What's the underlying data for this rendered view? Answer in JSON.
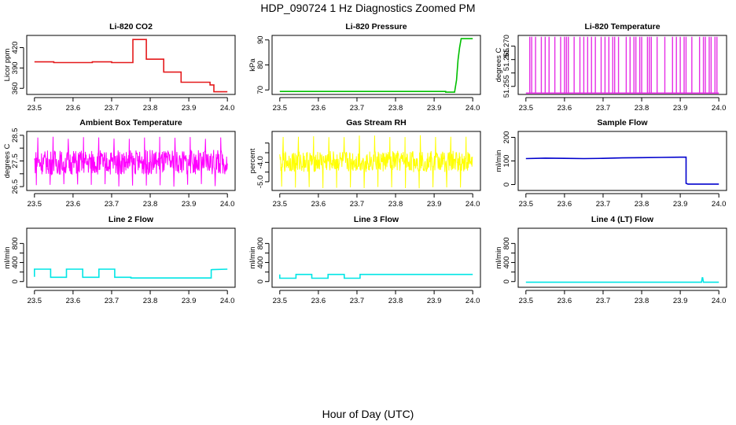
{
  "title": "HDP_090724  1 Hz Diagnostics Zoomed PM",
  "footer": "Hour of Day (UTC)",
  "chart_data": [
    {
      "type": "line",
      "title": "Li-820 CO2",
      "xlabel": "",
      "ylabel": "Licor ppm",
      "color": "#e41a1c",
      "xlim": [
        23.48,
        24.02
      ],
      "ylim": [
        351,
        438
      ],
      "x_ticks": [
        "23.5",
        "23.6",
        "23.7",
        "23.8",
        "23.9",
        "24.0"
      ],
      "y_ticks": [
        {
          "v": 360,
          "label": "360"
        },
        {
          "v": 390,
          "label": "390"
        },
        {
          "v": 420,
          "label": "420"
        }
      ],
      "series": [
        {
          "x": [
            23.5,
            23.55,
            23.55,
            23.6,
            23.6,
            23.65,
            23.65,
            23.7,
            23.7,
            23.75,
            23.755,
            23.755,
            23.79,
            23.79,
            23.835,
            23.835,
            23.88,
            23.88,
            23.955,
            23.955,
            23.965,
            23.965,
            24.0
          ],
          "y": [
            399,
            399,
            398,
            398,
            398,
            398,
            399,
            399,
            398,
            398,
            398,
            432,
            432,
            403,
            403,
            384,
            384,
            369,
            369,
            365,
            365,
            355,
            355
          ]
        }
      ]
    },
    {
      "type": "line",
      "title": "Li-820 Pressure",
      "xlabel": "",
      "ylabel": "kPa",
      "color": "#00bf00",
      "xlim": [
        23.48,
        24.02
      ],
      "ylim": [
        68.2,
        91.8
      ],
      "x_ticks": [
        "23.5",
        "23.6",
        "23.7",
        "23.8",
        "23.9",
        "24.0"
      ],
      "y_ticks": [
        {
          "v": 70,
          "label": "70"
        },
        {
          "v": 80,
          "label": "80"
        },
        {
          "v": 90,
          "label": "90"
        }
      ],
      "series": [
        {
          "x": [
            23.5,
            23.93,
            23.93,
            23.953,
            23.958,
            23.962,
            23.966,
            23.97,
            24.0
          ],
          "y": [
            69.4,
            69.4,
            69.1,
            69.1,
            74,
            82,
            87,
            90.5,
            90.5
          ]
        }
      ]
    },
    {
      "type": "line",
      "title": "Li-820 Temperature",
      "xlabel": "",
      "ylabel": "degrees C",
      "color": "#e62ee6",
      "xlim": [
        23.48,
        24.02
      ],
      "ylim": [
        51.252,
        51.274
      ],
      "x_ticks": [
        "23.5",
        "23.6",
        "23.7",
        "23.8",
        "23.9",
        "24.0"
      ],
      "y_ticks": [
        {
          "v": 51.255,
          "label": "51.255"
        },
        {
          "v": 51.26,
          "label": ""
        },
        {
          "v": 51.265,
          "label": "51.265"
        },
        {
          "v": 51.27,
          "label": "51.270"
        }
      ],
      "base_value": 51.2525,
      "spike_value": 51.2735,
      "spikes_x": [
        23.51,
        23.515,
        23.525,
        23.54,
        23.55,
        23.56,
        23.575,
        23.59,
        23.6,
        23.605,
        23.61,
        23.625,
        23.64,
        23.65,
        23.66,
        23.67,
        23.68,
        23.695,
        23.705,
        23.715,
        23.725,
        23.73,
        23.74,
        23.76,
        23.77,
        23.78,
        23.785,
        23.795,
        23.8,
        23.815,
        23.82,
        23.825,
        23.84,
        23.86,
        23.88,
        23.89,
        23.9,
        23.91,
        23.915,
        23.93,
        23.95,
        23.96,
        23.965,
        23.975,
        23.98,
        23.99,
        23.995
      ]
    },
    {
      "type": "line",
      "title": "Ambient Box Temperature",
      "xlabel": "",
      "ylabel": "degrees C",
      "color": "#ff00ff",
      "xlim": [
        23.48,
        24.02
      ],
      "ylim": [
        26.35,
        28.65
      ],
      "x_ticks": [
        "23.5",
        "23.6",
        "23.7",
        "23.8",
        "23.9",
        "24.0"
      ],
      "y_ticks": [
        {
          "v": 26.5,
          "label": "26.5"
        },
        {
          "v": 27.0,
          "label": ""
        },
        {
          "v": 27.5,
          "label": "27.5"
        },
        {
          "v": 28.0,
          "label": ""
        },
        {
          "v": 28.5,
          "label": "28.5"
        }
      ],
      "noise_band": {
        "center": 27.45,
        "spread": 0.48,
        "extreme_low": 26.5,
        "extreme_high": 28.45
      }
    },
    {
      "type": "line",
      "title": "Gas Stream RH",
      "xlabel": "",
      "ylabel": "percent",
      "color": "#ffff00",
      "xlim": [
        23.48,
        24.02
      ],
      "ylim": [
        -5.45,
        -2.4
      ],
      "x_ticks": [
        "23.5",
        "23.6",
        "23.7",
        "23.8",
        "23.9",
        "24.0"
      ],
      "y_ticks": [
        {
          "v": -5.0,
          "label": "-5.0"
        },
        {
          "v": -4.5,
          "label": ""
        },
        {
          "v": -4.0,
          "label": "-4.0"
        },
        {
          "v": -3.5,
          "label": ""
        },
        {
          "v": -3.0,
          "label": ""
        }
      ],
      "noise_band": {
        "center": -3.95,
        "spread": 0.55,
        "extreme_low": -5.35,
        "extreme_high": -2.6
      }
    },
    {
      "type": "line",
      "title": "Sample Flow",
      "xlabel": "",
      "ylabel": "ml/min",
      "color": "#0000cd",
      "xlim": [
        23.48,
        24.02
      ],
      "ylim": [
        -25,
        225
      ],
      "x_ticks": [
        "23.5",
        "23.6",
        "23.7",
        "23.8",
        "23.9",
        "24.0"
      ],
      "y_ticks": [
        {
          "v": 0,
          "label": "0"
        },
        {
          "v": 100,
          "label": "100"
        },
        {
          "v": 200,
          "label": "200"
        }
      ],
      "series": [
        {
          "x": [
            23.5,
            23.55,
            23.6,
            23.65,
            23.7,
            23.75,
            23.8,
            23.85,
            23.9,
            23.915,
            23.915,
            23.92,
            24.0
          ],
          "y": [
            110,
            112,
            111,
            110,
            111,
            113,
            114,
            115,
            116,
            116,
            5,
            2,
            2
          ]
        }
      ]
    },
    {
      "type": "line",
      "title": "Line 2 Flow",
      "xlabel": "",
      "ylabel": "ml/min",
      "color": "#00e5e5",
      "xlim": [
        23.48,
        24.02
      ],
      "ylim": [
        -120,
        1120
      ],
      "x_ticks": [
        "23.5",
        "23.6",
        "23.7",
        "23.8",
        "23.9",
        "24.0"
      ],
      "y_ticks": [
        {
          "v": 0,
          "label": "0"
        },
        {
          "v": 200,
          "label": ""
        },
        {
          "v": 400,
          "label": "400"
        },
        {
          "v": 600,
          "label": ""
        },
        {
          "v": 800,
          "label": "800"
        }
      ],
      "series": [
        {
          "x": [
            23.5,
            23.5,
            23.542,
            23.542,
            23.583,
            23.583,
            23.625,
            23.625,
            23.667,
            23.667,
            23.708,
            23.708,
            23.75,
            23.75,
            23.958,
            23.958,
            23.96,
            24.0
          ],
          "y": [
            100,
            260,
            260,
            90,
            90,
            260,
            260,
            90,
            90,
            260,
            260,
            90,
            90,
            75,
            75,
            245,
            250,
            260
          ]
        }
      ]
    },
    {
      "type": "line",
      "title": "Line 3 Flow",
      "xlabel": "",
      "ylabel": "ml/min",
      "color": "#00e5e5",
      "xlim": [
        23.48,
        24.02
      ],
      "ylim": [
        -120,
        1120
      ],
      "x_ticks": [
        "23.5",
        "23.6",
        "23.7",
        "23.8",
        "23.9",
        "24.0"
      ],
      "y_ticks": [
        {
          "v": 0,
          "label": "0"
        },
        {
          "v": 200,
          "label": ""
        },
        {
          "v": 400,
          "label": "400"
        },
        {
          "v": 600,
          "label": ""
        },
        {
          "v": 800,
          "label": "800"
        }
      ],
      "series": [
        {
          "x": [
            23.5,
            23.5,
            23.5,
            23.542,
            23.542,
            23.583,
            23.583,
            23.625,
            23.625,
            23.667,
            23.667,
            23.708,
            23.708,
            24.0
          ],
          "y": [
            150,
            150,
            70,
            70,
            150,
            150,
            70,
            70,
            150,
            150,
            70,
            70,
            150,
            150
          ]
        }
      ]
    },
    {
      "type": "line",
      "title": "Line 4 (LT) Flow",
      "xlabel": "",
      "ylabel": "ml/min",
      "color": "#00e5e5",
      "xlim": [
        23.48,
        24.02
      ],
      "ylim": [
        -120,
        1120
      ],
      "x_ticks": [
        "23.5",
        "23.6",
        "23.7",
        "23.8",
        "23.9",
        "24.0"
      ],
      "y_ticks": [
        {
          "v": 0,
          "label": "0"
        },
        {
          "v": 200,
          "label": ""
        },
        {
          "v": 400,
          "label": "400"
        },
        {
          "v": 600,
          "label": ""
        },
        {
          "v": 800,
          "label": "800"
        }
      ],
      "series": [
        {
          "x": [
            23.5,
            23.955,
            23.957,
            23.958,
            23.96,
            24.0
          ],
          "y": [
            -15,
            -15,
            80,
            80,
            -15,
            -15
          ]
        }
      ]
    }
  ]
}
